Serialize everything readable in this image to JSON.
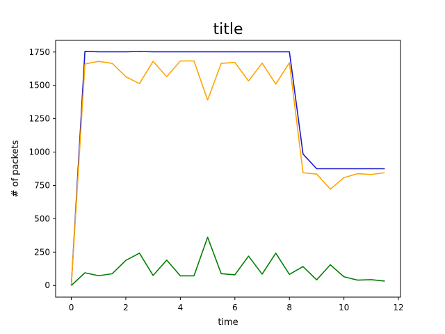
{
  "chart_data": {
    "type": "line",
    "title": "title",
    "xlabel": "time",
    "ylabel": "# of packets",
    "xlim": [
      -0.575,
      12.075
    ],
    "ylim": [
      -87.5,
      1837.5
    ],
    "x_ticks": [
      0,
      2,
      4,
      6,
      8,
      10,
      12
    ],
    "y_ticks": [
      0,
      250,
      500,
      750,
      1000,
      1250,
      1500,
      1750
    ],
    "grid": false,
    "legend": "none",
    "x": [
      0,
      0.5,
      1,
      1.5,
      2,
      2.5,
      3,
      3.5,
      4,
      4.5,
      5,
      5.5,
      6,
      6.5,
      7,
      7.5,
      8,
      8.5,
      9,
      9.5,
      10,
      10.5,
      11,
      11.5
    ],
    "series": [
      {
        "color": "#1a1acc",
        "values": [
          0,
          1755,
          1752,
          1752,
          1752,
          1754,
          1752,
          1752,
          1752,
          1752,
          1752,
          1752,
          1752,
          1752,
          1752,
          1752,
          1752,
          985,
          875,
          875,
          875,
          875,
          875,
          875
        ]
      },
      {
        "color": "#ffa500",
        "values": [
          0,
          1660,
          1680,
          1665,
          1565,
          1513,
          1680,
          1565,
          1683,
          1683,
          1390,
          1665,
          1672,
          1533,
          1667,
          1510,
          1670,
          845,
          835,
          722,
          808,
          838,
          832,
          845
        ]
      },
      {
        "color": "#008000",
        "values": [
          0,
          95,
          73,
          88,
          188,
          242,
          75,
          190,
          72,
          72,
          362,
          88,
          80,
          220,
          85,
          242,
          83,
          142,
          42,
          155,
          65,
          40,
          43,
          33
        ]
      }
    ]
  }
}
